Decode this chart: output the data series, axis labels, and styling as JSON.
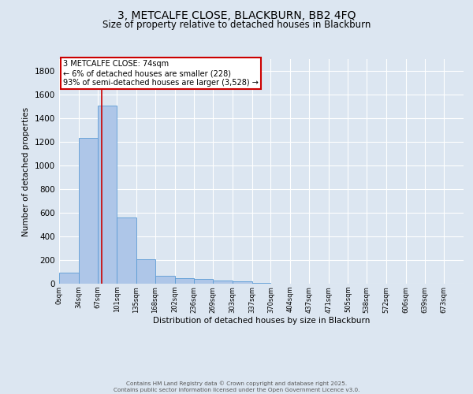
{
  "title": "3, METCALFE CLOSE, BLACKBURN, BB2 4FQ",
  "subtitle": "Size of property relative to detached houses in Blackburn",
  "xlabel": "Distribution of detached houses by size in Blackburn",
  "ylabel": "Number of detached properties",
  "bar_labels": [
    "0sqm",
    "34sqm",
    "67sqm",
    "101sqm",
    "135sqm",
    "168sqm",
    "202sqm",
    "236sqm",
    "269sqm",
    "303sqm",
    "337sqm",
    "370sqm",
    "404sqm",
    "437sqm",
    "471sqm",
    "505sqm",
    "538sqm",
    "572sqm",
    "606sqm",
    "639sqm",
    "673sqm"
  ],
  "bar_values": [
    95,
    1235,
    1510,
    560,
    210,
    65,
    50,
    40,
    30,
    20,
    8,
    3,
    2,
    1,
    1,
    0,
    0,
    0,
    0,
    0,
    0
  ],
  "bar_color": "#aec6e8",
  "bar_edge_color": "#5b9bd5",
  "background_color": "#dce6f1",
  "plot_bg_color": "#dce6f1",
  "grid_color": "#ffffff",
  "property_line_x": 74,
  "bin_edges": [
    0,
    34,
    67,
    101,
    135,
    168,
    202,
    236,
    269,
    303,
    337,
    370,
    404,
    437,
    471,
    505,
    538,
    572,
    606,
    639,
    673,
    707
  ],
  "annotation_title": "3 METCALFE CLOSE: 74sqm",
  "annotation_line1": "← 6% of detached houses are smaller (228)",
  "annotation_line2": "93% of semi-detached houses are larger (3,528) →",
  "annotation_box_color": "#ffffff",
  "annotation_box_edge": "#cc0000",
  "vline_color": "#cc0000",
  "ylim": [
    0,
    1900
  ],
  "yticks": [
    0,
    200,
    400,
    600,
    800,
    1000,
    1200,
    1400,
    1600,
    1800
  ],
  "footer_line1": "Contains HM Land Registry data © Crown copyright and database right 2025.",
  "footer_line2": "Contains public sector information licensed under the Open Government Licence v3.0."
}
